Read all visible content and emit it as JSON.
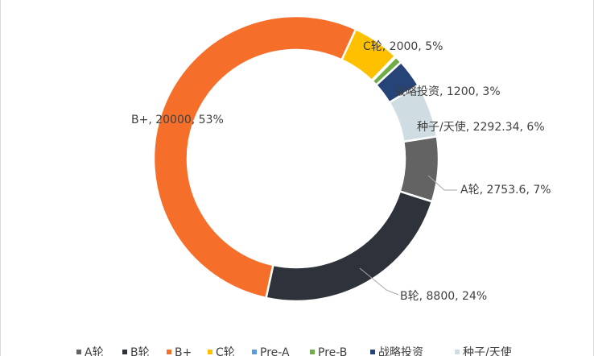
{
  "chart_data": {
    "type": "doughnut",
    "categories": [
      "A轮",
      "B轮",
      "B+",
      "C轮",
      "Pre-A",
      "Pre-B",
      "战略投资",
      "种子/天使"
    ],
    "values": [
      2753.6,
      8800,
      20000,
      2000,
      50,
      300,
      1200,
      2292.34
    ],
    "value_labels": [
      "A轮, 2753.6, 7%",
      "B轮, 8800, 24%",
      "B+, 20000, 53%",
      "C轮, 2000, 5%",
      null,
      null,
      "战略投资, 1200, 3%",
      "种子/天使, 2292.34, 6%"
    ],
    "colors": [
      "#636363",
      "#2e323b",
      "#f56f2a",
      "#ffc000",
      "#5b9bd5",
      "#70ad47",
      "#264478",
      "#cfdde3"
    ],
    "legend": "bottom"
  }
}
